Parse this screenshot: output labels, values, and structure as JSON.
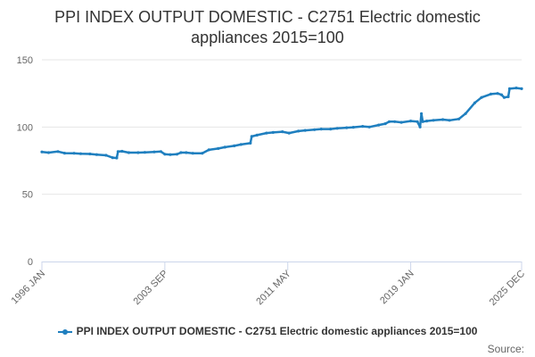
{
  "chart_data": {
    "type": "line",
    "title_lines": [
      "PPI INDEX OUTPUT DOMESTIC - C2751 Electric domestic",
      "appliances 2015=100"
    ],
    "xlabel": "",
    "ylabel": "",
    "x_range": [
      "1996-01",
      "2025-12"
    ],
    "x_ticks": [
      {
        "date": "1996-01",
        "label": "1996 JAN"
      },
      {
        "date": "2003-09",
        "label": "2003 SEP"
      },
      {
        "date": "2011-05",
        "label": "2011 MAY"
      },
      {
        "date": "2019-01",
        "label": "2019 JAN"
      },
      {
        "date": "2025-12",
        "label": "2025 DEC"
      }
    ],
    "y_ticks": [
      {
        "value": 0,
        "label": "0"
      },
      {
        "value": 50,
        "label": "50"
      },
      {
        "value": 100,
        "label": "100"
      },
      {
        "value": 150,
        "label": "150"
      }
    ],
    "ylim": [
      0,
      150
    ],
    "grid": "horizontal",
    "legend_position": "bottom",
    "series": [
      {
        "name": "PPI INDEX OUTPUT DOMESTIC - C2751 Electric domestic appliances 2015=100",
        "color": "#1f7fbf",
        "points": [
          [
            "1996-01",
            81.5
          ],
          [
            "1996-06",
            81.0
          ],
          [
            "1997-01",
            81.8
          ],
          [
            "1997-06",
            80.6
          ],
          [
            "1998-01",
            80.5
          ],
          [
            "1998-06",
            80.2
          ],
          [
            "1999-01",
            80.0
          ],
          [
            "1999-06",
            79.5
          ],
          [
            "2000-01",
            79.0
          ],
          [
            "2000-06",
            77.2
          ],
          [
            "2000-09",
            77.0
          ],
          [
            "2000-10",
            81.8
          ],
          [
            "2001-01",
            82.0
          ],
          [
            "2001-06",
            81.0
          ],
          [
            "2002-01",
            81.0
          ],
          [
            "2002-06",
            81.2
          ],
          [
            "2003-01",
            81.5
          ],
          [
            "2003-06",
            81.8
          ],
          [
            "2003-09",
            79.8
          ],
          [
            "2004-01",
            79.5
          ],
          [
            "2004-06",
            79.8
          ],
          [
            "2004-09",
            81.0
          ],
          [
            "2005-01",
            81.0
          ],
          [
            "2005-06",
            80.5
          ],
          [
            "2006-01",
            80.5
          ],
          [
            "2006-06",
            83.0
          ],
          [
            "2007-01",
            84.0
          ],
          [
            "2007-06",
            85.0
          ],
          [
            "2008-01",
            86.0
          ],
          [
            "2008-06",
            87.0
          ],
          [
            "2009-01",
            88.0
          ],
          [
            "2009-02",
            93.0
          ],
          [
            "2009-06",
            94.0
          ],
          [
            "2010-01",
            95.5
          ],
          [
            "2010-06",
            96.0
          ],
          [
            "2011-01",
            96.5
          ],
          [
            "2011-06",
            95.5
          ],
          [
            "2012-01",
            97.0
          ],
          [
            "2012-06",
            97.5
          ],
          [
            "2013-01",
            98.0
          ],
          [
            "2013-06",
            98.5
          ],
          [
            "2014-01",
            98.5
          ],
          [
            "2014-06",
            99.0
          ],
          [
            "2015-01",
            99.5
          ],
          [
            "2015-06",
            99.8
          ],
          [
            "2016-01",
            100.5
          ],
          [
            "2016-06",
            100.0
          ],
          [
            "2017-01",
            101.5
          ],
          [
            "2017-06",
            102.5
          ],
          [
            "2017-09",
            104.0
          ],
          [
            "2018-01",
            104.0
          ],
          [
            "2018-06",
            103.5
          ],
          [
            "2019-01",
            104.5
          ],
          [
            "2019-06",
            104.0
          ],
          [
            "2019-08",
            100.0
          ],
          [
            "2019-09",
            110.0
          ],
          [
            "2019-10",
            104.0
          ],
          [
            "2020-01",
            104.5
          ],
          [
            "2020-06",
            105.0
          ],
          [
            "2021-01",
            105.5
          ],
          [
            "2021-06",
            105.0
          ],
          [
            "2022-01",
            106.0
          ],
          [
            "2022-06",
            110.0
          ],
          [
            "2023-01",
            118.0
          ],
          [
            "2023-06",
            122.0
          ],
          [
            "2024-01",
            124.5
          ],
          [
            "2024-06",
            125.0
          ],
          [
            "2024-09",
            124.0
          ],
          [
            "2024-11",
            122.0
          ],
          [
            "2025-02",
            122.5
          ],
          [
            "2025-03",
            128.5
          ],
          [
            "2025-08",
            129.0
          ],
          [
            "2025-12",
            128.5
          ]
        ]
      }
    ]
  },
  "legend": {
    "label": "PPI INDEX OUTPUT DOMESTIC - C2751 Electric domestic appliances 2015=100"
  },
  "credits": "Source:"
}
